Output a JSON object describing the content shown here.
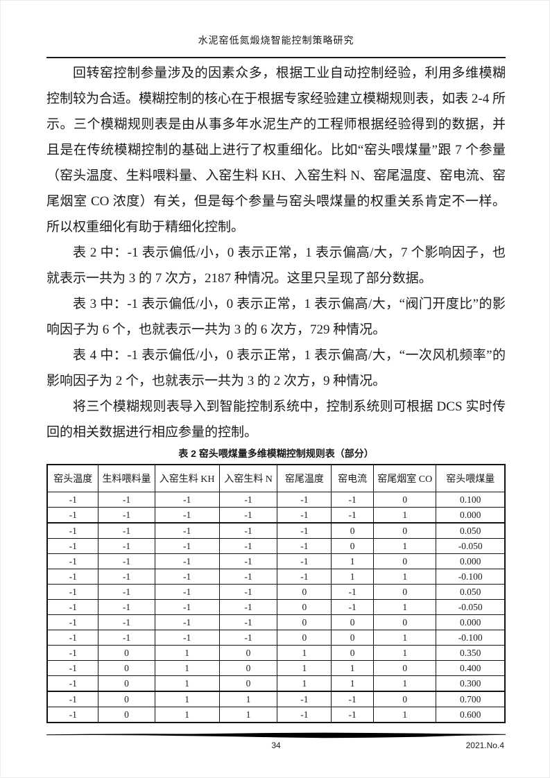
{
  "ink_color": "#1a1a1a",
  "header": {
    "title": "水泥窑低氮煅烧智能控制策略研究"
  },
  "paragraphs": [
    "回转窑控制参量涉及的因素众多，根据工业自动控制经验，利用多维模糊控制较为合适。模糊控制的核心在于根据专家经验建立模糊规则表，如表 2-4 所示。三个模糊规则表是由从事多年水泥生产的工程师根据经验得到的数据，并且是在传统模糊控制的基础上进行了权重细化。比如“窑头喂煤量”跟 7 个参量（窑头温度、生料喂料量、入窑生料 KH、入窑生料 N、窑尾温度、窑电流、窑尾烟室 CO 浓度）有关，但是每个参量与窑头喂煤量的权重关系肯定不一样。所以权重细化有助于精细化控制。",
    "表 2 中：-1 表示偏低/小，0 表示正常，1 表示偏高/大，7 个影响因子，也就表示一共为 3 的 7 次方，2187 种情况。这里只呈现了部分数据。",
    "表 3 中：-1 表示偏低/小，0 表示正常，1 表示偏高/大，“阀门开度比”的影响因子为 6 个，也就表示一共为 3 的 6 次方，729 种情况。",
    "表 4 中：-1 表示偏低/小，0 表示正常，1 表示偏高/大，“一次风机频率”的影响因子为 2 个，也就表示一共为 3 的 2 次方，9 种情况。",
    "将三个模糊规则表导入到智能控制系统中，控制系统则可根据 DCS 实时传回的相关数据进行相应参量的控制。"
  ],
  "table": {
    "caption": "表 2 窑头喂煤量多维模糊控制规则表（部分）",
    "columns": [
      "窑头温度",
      "生料喂料量",
      "入窑生料 KH",
      "入窑生料 N",
      "窑尾温度",
      "窑电流",
      "窑尾烟室 CO",
      "窑头喂煤量"
    ],
    "rows": [
      [
        "-1",
        "-1",
        "-1",
        "-1",
        "-1",
        "-1",
        "0",
        "0.100"
      ],
      [
        "-1",
        "-1",
        "-1",
        "-1",
        "-1",
        "-1",
        "1",
        "0.000"
      ],
      [
        "-1",
        "-1",
        "-1",
        "-1",
        "-1",
        "0",
        "0",
        "0.050"
      ],
      [
        "-1",
        "-1",
        "-1",
        "-1",
        "-1",
        "0",
        "1",
        "-0.050"
      ],
      [
        "-1",
        "-1",
        "-1",
        "-1",
        "-1",
        "1",
        "0",
        "0.000"
      ],
      [
        "-1",
        "-1",
        "-1",
        "-1",
        "-1",
        "1",
        "1",
        "-0.100"
      ],
      [
        "-1",
        "-1",
        "-1",
        "-1",
        "0",
        "-1",
        "0",
        "0.050"
      ],
      [
        "-1",
        "-1",
        "-1",
        "-1",
        "0",
        "-1",
        "1",
        "-0.050"
      ],
      [
        "-1",
        "-1",
        "-1",
        "-1",
        "0",
        "0",
        "0",
        "0.000"
      ],
      [
        "-1",
        "-1",
        "-1",
        "-1",
        "0",
        "0",
        "1",
        "-0.100"
      ],
      [
        "-1",
        "0",
        "1",
        "0",
        "1",
        "0",
        "1",
        "0.350"
      ],
      [
        "-1",
        "0",
        "1",
        "0",
        "1",
        "1",
        "0",
        "0.400"
      ],
      [
        "-1",
        "0",
        "1",
        "0",
        "1",
        "1",
        "1",
        "0.300"
      ],
      [
        "-1",
        "0",
        "1",
        "1",
        "-1",
        "-1",
        "0",
        "0.700"
      ],
      [
        "-1",
        "0",
        "1",
        "1",
        "-1",
        "-1",
        "1",
        "0.600"
      ]
    ]
  },
  "footer": {
    "page_number": "34",
    "issue": "2021.No.4"
  }
}
